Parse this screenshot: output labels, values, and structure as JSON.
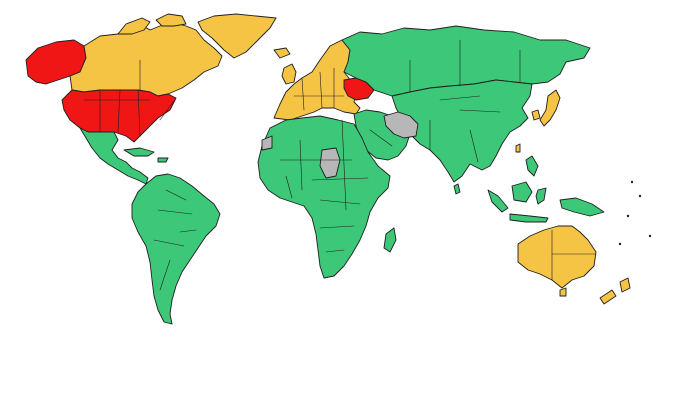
{
  "map": {
    "colors": {
      "green": "#3cc878",
      "yellow": "#f6c445",
      "red": "#f01616",
      "gray": "#b7b7b7",
      "border": "#1f1f1f",
      "ocean": "#ffffff"
    },
    "regions": [
      {
        "id": "alaska",
        "color": "red"
      },
      {
        "id": "contiguous-united-states",
        "color": "red"
      },
      {
        "id": "canada",
        "color": "yellow"
      },
      {
        "id": "greenland",
        "color": "yellow"
      },
      {
        "id": "mexico-central-america",
        "color": "green"
      },
      {
        "id": "south-america",
        "color": "green"
      },
      {
        "id": "europe",
        "color": "yellow"
      },
      {
        "id": "ukraine",
        "color": "red"
      },
      {
        "id": "russia",
        "color": "green"
      },
      {
        "id": "africa",
        "color": "green"
      },
      {
        "id": "madagascar",
        "color": "green"
      },
      {
        "id": "middle-east",
        "color": "green"
      },
      {
        "id": "iran",
        "color": "gray"
      },
      {
        "id": "chad",
        "color": "gray"
      },
      {
        "id": "western-sahara",
        "color": "gray"
      },
      {
        "id": "asia",
        "color": "green"
      },
      {
        "id": "japan",
        "color": "yellow"
      },
      {
        "id": "south-korea",
        "color": "yellow"
      },
      {
        "id": "taiwan",
        "color": "yellow"
      },
      {
        "id": "indonesia",
        "color": "green"
      },
      {
        "id": "philippines",
        "color": "green"
      },
      {
        "id": "australia",
        "color": "yellow"
      },
      {
        "id": "new-zealand",
        "color": "yellow"
      }
    ]
  }
}
